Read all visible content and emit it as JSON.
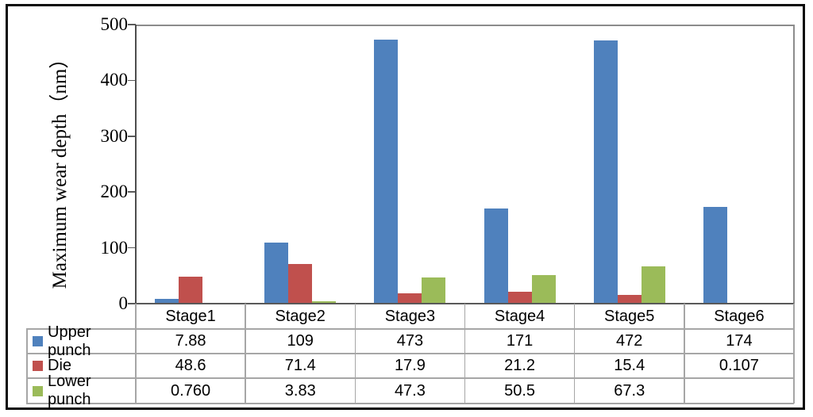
{
  "chart_data": {
    "type": "bar",
    "title": "",
    "ylabel": "Maximum wear depth（nm）",
    "xlabel": "",
    "categories": [
      "Stage1",
      "Stage2",
      "Stage3",
      "Stage4",
      "Stage5",
      "Stage6"
    ],
    "series": [
      {
        "name": "Upper punch",
        "color": "#4F81BD",
        "values": [
          7.88,
          109,
          473,
          171,
          472,
          174
        ],
        "labels": [
          "7.88",
          "109",
          "473",
          "171",
          "472",
          "174"
        ]
      },
      {
        "name": "Die",
        "color": "#C0504D",
        "values": [
          48.6,
          71.4,
          17.9,
          21.2,
          15.4,
          0.107
        ],
        "labels": [
          "48.6",
          "71.4",
          "17.9",
          "21.2",
          "15.4",
          "0.107"
        ]
      },
      {
        "name": "Lower punch",
        "color": "#9BBB59",
        "values": [
          0.76,
          3.83,
          47.3,
          50.5,
          67.3,
          null
        ],
        "labels": [
          "0.760",
          "3.83",
          "47.3",
          "50.5",
          "67.3",
          ""
        ]
      }
    ],
    "ylim": [
      0,
      500
    ],
    "yticks": [
      0,
      100,
      200,
      300,
      400,
      500
    ],
    "grid": false,
    "legend_position": "data-table-left",
    "data_table": true
  }
}
